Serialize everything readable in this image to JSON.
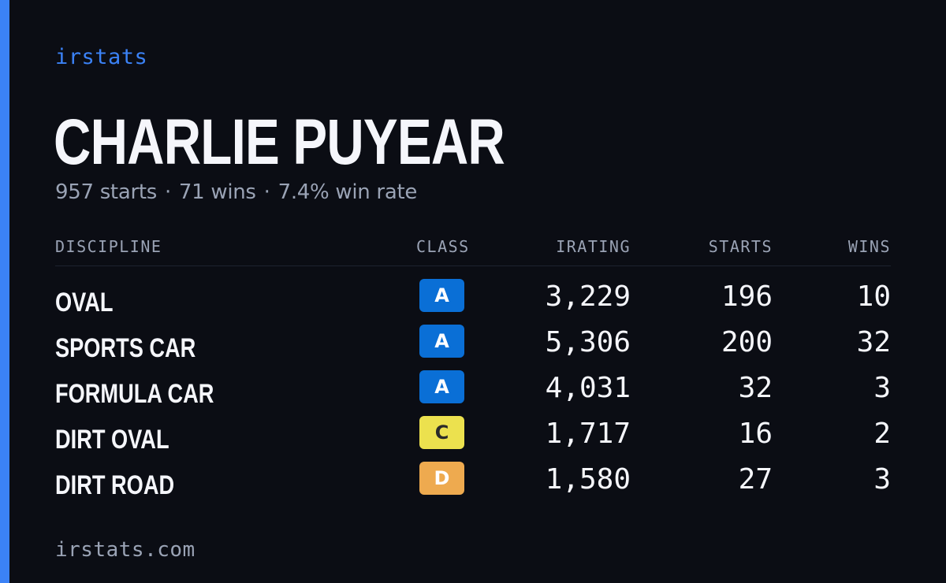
{
  "brand": "irstats",
  "driver": {
    "name": "CHARLIE PUYEAR",
    "summary": {
      "starts": "957 starts",
      "wins": "71 wins",
      "win_rate": "7.4% win rate",
      "separator": "·"
    }
  },
  "table": {
    "headers": {
      "discipline": "DISCIPLINE",
      "class": "CLASS",
      "irating": "IRATING",
      "starts": "STARTS",
      "wins": "WINS"
    },
    "rows": [
      {
        "discipline": "OVAL",
        "class": "A",
        "class_color": "#0a6fd6",
        "class_text_color": "#ffffff",
        "irating": "3,229",
        "starts": "196",
        "wins": "10"
      },
      {
        "discipline": "SPORTS CAR",
        "class": "A",
        "class_color": "#0a6fd6",
        "class_text_color": "#ffffff",
        "irating": "5,306",
        "starts": "200",
        "wins": "32"
      },
      {
        "discipline": "FORMULA CAR",
        "class": "A",
        "class_color": "#0a6fd6",
        "class_text_color": "#ffffff",
        "irating": "4,031",
        "starts": "32",
        "wins": "3"
      },
      {
        "discipline": "DIRT OVAL",
        "class": "C",
        "class_color": "#ece14e",
        "class_text_color": "#2a2a2a",
        "irating": "1,717",
        "starts": "16",
        "wins": "2"
      },
      {
        "discipline": "DIRT ROAD",
        "class": "D",
        "class_color": "#eeaa4f",
        "class_text_color": "#ffffff",
        "irating": "1,580",
        "starts": "27",
        "wins": "3"
      }
    ]
  },
  "footer": "irstats.com",
  "colors": {
    "background": "#0b0d14",
    "accent": "#3b82f6",
    "text_primary": "#f5f6fb",
    "text_muted": "#9aa3b5"
  }
}
